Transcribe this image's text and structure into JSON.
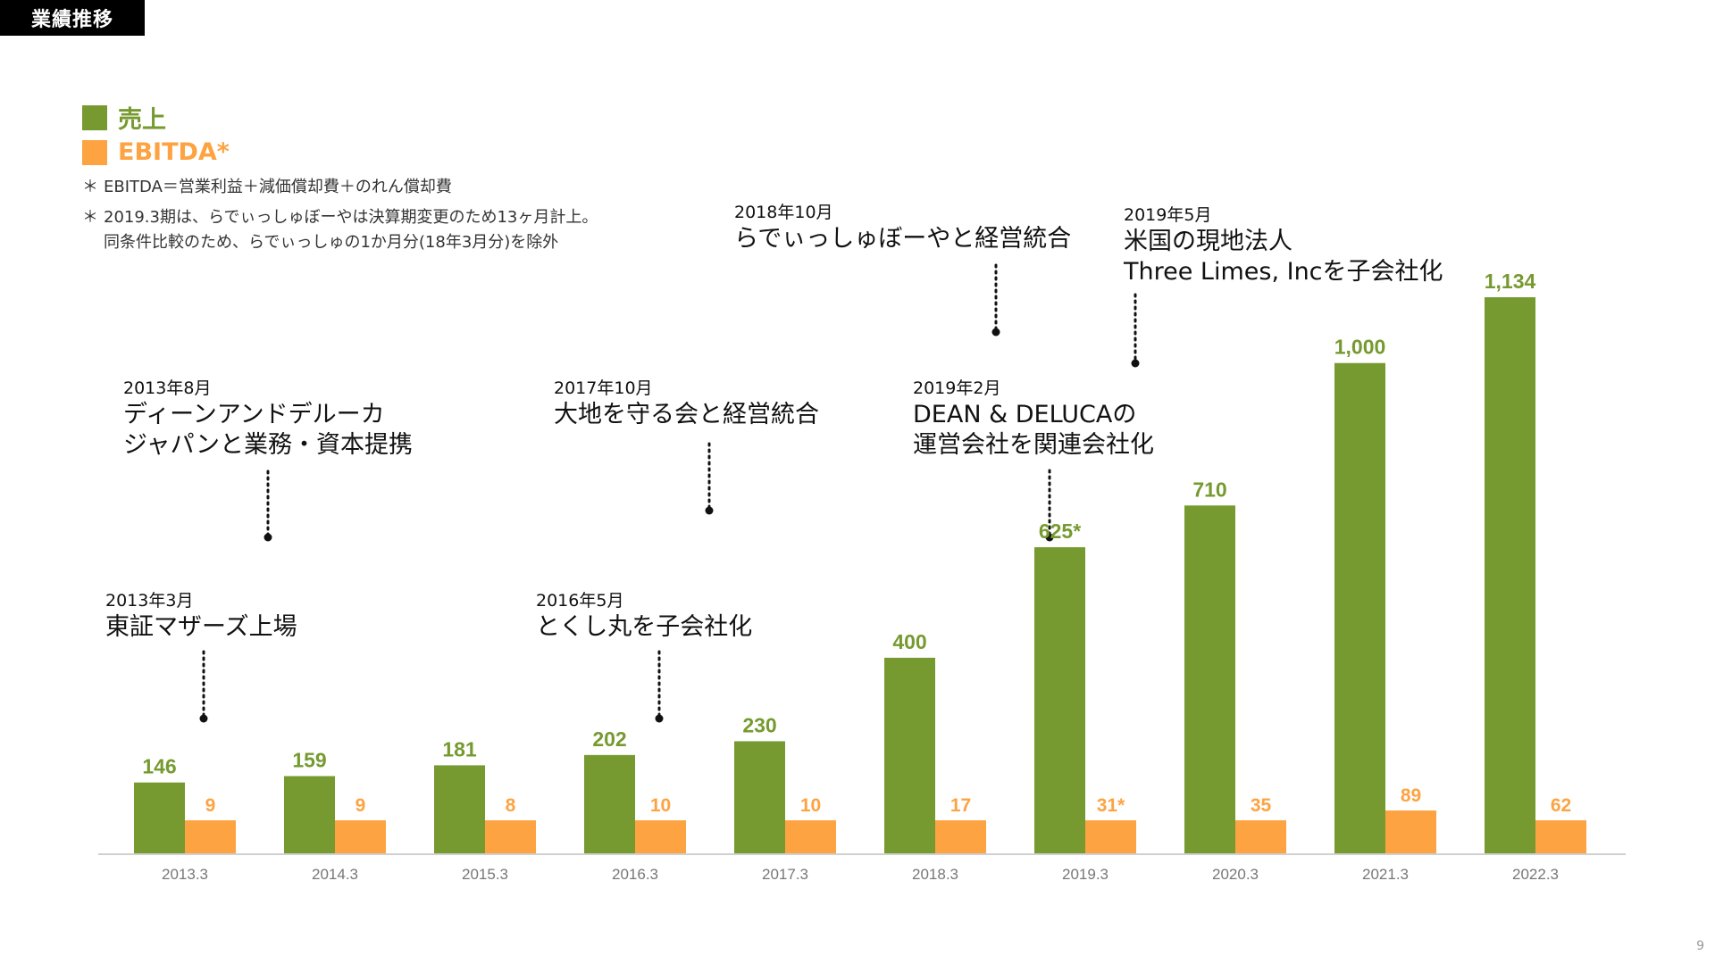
{
  "header": {
    "title": "業績推移"
  },
  "legend": [
    {
      "label": "売上",
      "color": "#769a30"
    },
    {
      "label": "EBITDA*",
      "color": "#fda342"
    }
  ],
  "notes": {
    "line1": "EBITDA＝営業利益＋減価償却費＋のれん償却費",
    "line2": "2019.3期は、らでぃっしゅぼーやは決算期変更のため13ヶ月計上。",
    "line3": "同条件比較のため、らでぃっしゅの1か月分(18年3月分)を除外",
    "mark": "＊"
  },
  "annotations": [
    {
      "date": "2013年3月",
      "text1": "東証マザーズ上場",
      "text2": ""
    },
    {
      "date": "2013年8月",
      "text1": "ディーンアンドデルーカ",
      "text2": "ジャパンと業務・資本提携"
    },
    {
      "date": "2016年5月",
      "text1": "とくし丸を子会社化",
      "text2": ""
    },
    {
      "date": "2017年10月",
      "text1": "大地を守る会と経営統合",
      "text2": ""
    },
    {
      "date": "2018年10月",
      "text1": "らでぃっしゅぼーやと経営統合",
      "text2": ""
    },
    {
      "date": "2019年2月",
      "text1": "DEAN & DELUCAの",
      "text2": "運営会社を関連会社化"
    },
    {
      "date": "2019年5月",
      "text1": "米国の現地法人",
      "text2": "Three Limes, Incを子会社化"
    }
  ],
  "chart_data": {
    "type": "bar",
    "categories": [
      "2013.3",
      "2014.3",
      "2015.3",
      "2016.3",
      "2017.3",
      "2018.3",
      "2019.3",
      "2020.3",
      "2021.3",
      "2022.3"
    ],
    "series": [
      {
        "name": "売上",
        "color": "#769a30",
        "values": [
          146,
          159,
          181,
          202,
          230,
          400,
          625,
          710,
          1000,
          1134
        ],
        "labels": [
          "146",
          "159",
          "181",
          "202",
          "230",
          "400",
          "625*",
          "710",
          "1,000",
          "1,134"
        ]
      },
      {
        "name": "EBITDA*",
        "color": "#fda342",
        "values": [
          9,
          9,
          8,
          10,
          10,
          17,
          31,
          35,
          89,
          62
        ],
        "labels": [
          "9",
          "9",
          "8",
          "10",
          "10",
          "17",
          "31*",
          "35",
          "89",
          "62"
        ]
      }
    ],
    "title": "業績推移",
    "xlabel": "",
    "ylabel": "",
    "legend_position": "top-left"
  },
  "page": {
    "number": "9"
  }
}
